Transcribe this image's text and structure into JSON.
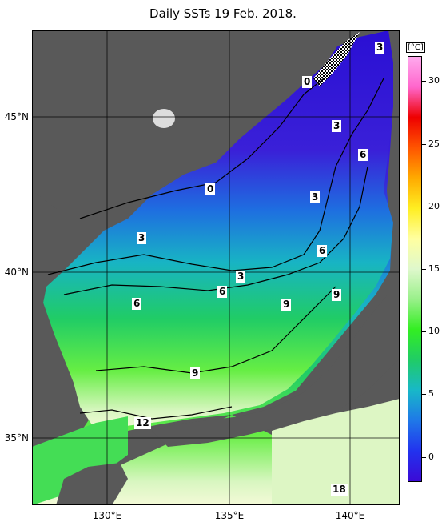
{
  "title": "Daily SSTs 19 Feb. 2018.",
  "unit": "[°C]",
  "lat_labels": [
    "45°N",
    "40°N",
    "35°N"
  ],
  "lon_labels": [
    "130°E",
    "135°E",
    "140°E"
  ],
  "colorbar": {
    "ticks": [
      "0",
      "5",
      "10",
      "15",
      "20",
      "25",
      "30"
    ],
    "range": [
      -2,
      32
    ],
    "colors": [
      "#3b0ad6",
      "#2233ee",
      "#1f78e8",
      "#18b8c8",
      "#20cc66",
      "#33ee22",
      "#99f08a",
      "#dff8cc",
      "#ffffa0",
      "#ffee22",
      "#ffaa00",
      "#ff5500",
      "#ee0000",
      "#ff66cc",
      "#ffaaee"
    ]
  },
  "isotherm_labels": [
    "3",
    "0",
    "3",
    "6",
    "0",
    "3",
    "3",
    "6",
    "3",
    "6",
    "9",
    "6",
    "9",
    "9",
    "12",
    "18"
  ],
  "colors": {
    "land": "#595959",
    "ocean_cold": "#3a18d0",
    "ocean_warm": "#22cc77",
    "frame": "#000000"
  }
}
